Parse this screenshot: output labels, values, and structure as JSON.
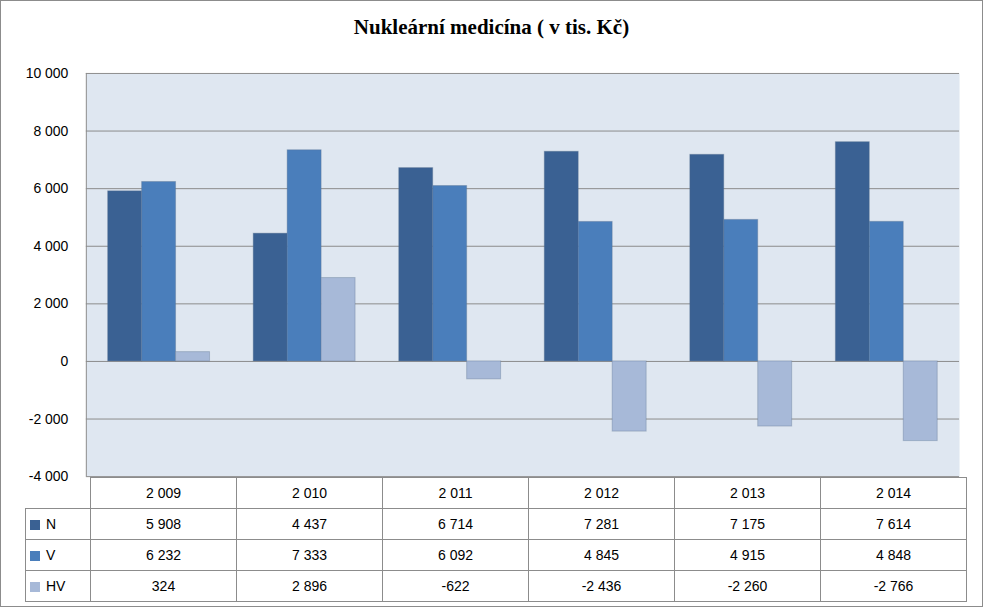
{
  "chart_data": {
    "type": "bar",
    "title": "Nukleární medicína ( v tis. Kč)",
    "categories": [
      "2 009",
      "2 010",
      "2 011",
      "2 012",
      "2 013",
      "2 014"
    ],
    "series": [
      {
        "name": "N",
        "color": "#3a6193",
        "values": [
          5908,
          4437,
          6714,
          7281,
          7175,
          7614
        ],
        "value_labels": [
          "5 908",
          "4 437",
          "6 714",
          "7 281",
          "7 175",
          "7 614"
        ]
      },
      {
        "name": "V",
        "color": "#4a7ebb",
        "values": [
          6232,
          7333,
          6092,
          4845,
          4915,
          4848
        ],
        "value_labels": [
          "6 232",
          "7 333",
          "6 092",
          "4 845",
          "4 915",
          "4 848"
        ]
      },
      {
        "name": "HV",
        "color": "#a7b9d8",
        "values": [
          324,
          2896,
          -622,
          -2436,
          -2260,
          -2766
        ],
        "value_labels": [
          "324",
          "2 896",
          "-622",
          "-2 436",
          "-2 260",
          "-2 766"
        ]
      }
    ],
    "ylim": [
      -4000,
      10000
    ],
    "yticks": [
      {
        "value": -4000,
        "label": "-4 000"
      },
      {
        "value": -2000,
        "label": "-2 000"
      },
      0,
      {
        "value": 2000,
        "label": "2 000"
      },
      {
        "value": 4000,
        "label": "4 000"
      },
      {
        "value": 6000,
        "label": "6 000"
      },
      {
        "value": 8000,
        "label": "8 000"
      },
      {
        "value": 10000,
        "label": "10 000"
      }
    ],
    "grid": true,
    "data_labels": true
  }
}
